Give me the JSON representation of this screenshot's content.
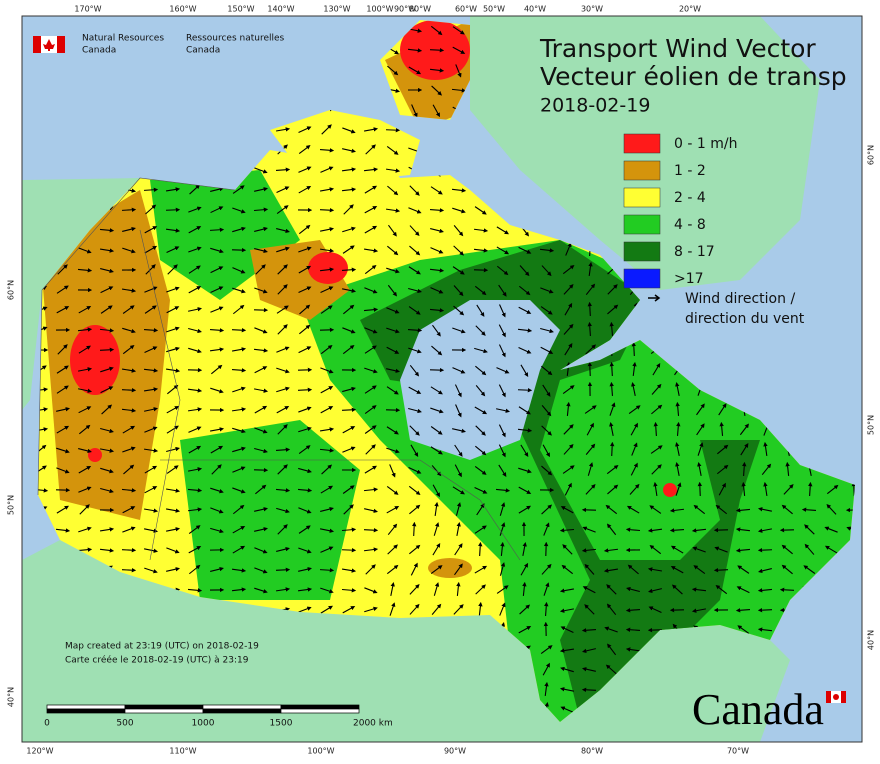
{
  "header": {
    "org_en_1": "Natural Resources",
    "org_en_2": "Canada",
    "org_fr_1": "Ressources naturelles",
    "org_fr_2": "Canada"
  },
  "title": {
    "line_1": "Transport Wind Vector",
    "line_2": "Vecteur éolien de transp",
    "date": "2018-02-19"
  },
  "legend": {
    "items": [
      {
        "label": "0 - 1 m/h",
        "color": "#ff1a1a"
      },
      {
        "label": "1 - 2",
        "color": "#d4940c"
      },
      {
        "label": "2 - 4",
        "color": "#ffff33"
      },
      {
        "label": "4 - 8",
        "color": "#22cc22"
      },
      {
        "label": "8 - 17",
        "color": "#137a13"
      },
      {
        "label": ">17",
        "color": "#0a1aff"
      }
    ],
    "arrow_label_1": "Wind direction /",
    "arrow_label_2": "direction du vent"
  },
  "top_lon_labels": [
    "170°W",
    "160°W",
    "150°W",
    "140°W",
    "130°W",
    "100°W",
    "90°W",
    "80°W",
    "60°W",
    "50°W",
    "40°W",
    "30°W",
    "20°W"
  ],
  "bottom_lon_labels": [
    "120°W",
    "110°W",
    "100°W",
    "90°W",
    "80°W",
    "70°W"
  ],
  "left_lat_labels": [
    "60°N",
    "50°N",
    "40°N"
  ],
  "right_lat_labels": [
    "60°N",
    "50°N",
    "40°N"
  ],
  "scale": {
    "labels": [
      "0",
      "500",
      "1000",
      "1500",
      "2000 km"
    ]
  },
  "credits": {
    "en": "Map created at 23:19 (UTC) on 2018-02-19",
    "fr": "Carte créée le 2018-02-19 (UTC) à 23:19"
  },
  "wordmark": "Canada"
}
